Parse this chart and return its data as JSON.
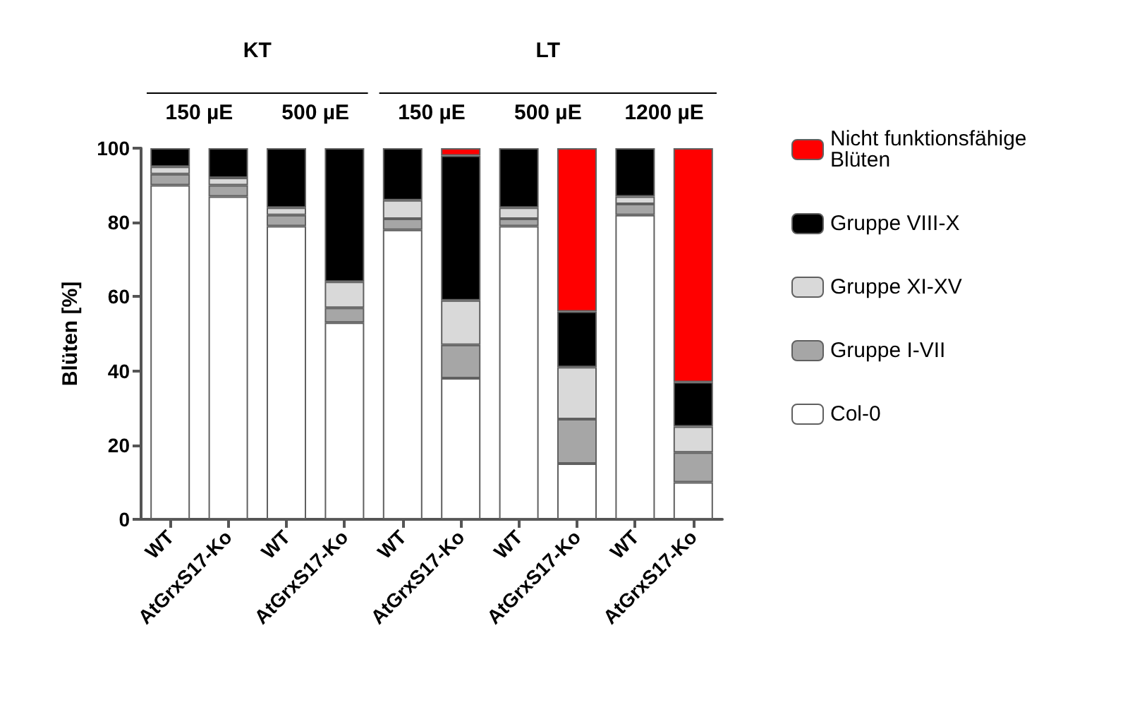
{
  "chart_data": {
    "type": "bar",
    "stacked": true,
    "ylabel": "Blüten [%]",
    "categories": [
      "WT",
      "AtGrxS17-Ko",
      "WT",
      "AtGrxS17-Ko",
      "WT",
      "AtGrxS17-Ko",
      "WT",
      "AtGrxS17-Ko",
      "WT",
      "AtGrxS17-Ko"
    ],
    "series": [
      {
        "name": "Col-0",
        "color": "#ffffff",
        "values": [
          90,
          87,
          79,
          53,
          78,
          38,
          79,
          15,
          82,
          10
        ]
      },
      {
        "name": "Gruppe I-VII",
        "color": "#a6a6a6",
        "values": [
          3,
          3,
          3,
          4,
          3,
          9,
          2,
          12,
          3,
          8
        ]
      },
      {
        "name": "Gruppe XI-XV",
        "color": "#d9d9d9",
        "values": [
          2,
          2,
          2,
          7,
          5,
          12,
          3,
          14,
          2,
          7
        ]
      },
      {
        "name": "Gruppe VIII-X",
        "color": "#000000",
        "values": [
          5,
          8,
          16,
          36,
          14,
          39,
          16,
          15,
          13,
          12
        ]
      },
      {
        "name": "Nicht funktionsfähige Blüten",
        "color": "#ff0000",
        "values": [
          null,
          null,
          null,
          null,
          null,
          2,
          null,
          44,
          null,
          63
        ]
      }
    ],
    "ylim": [
      0,
      100
    ],
    "yticks": [
      0,
      20,
      40,
      60,
      80,
      100
    ],
    "grid": false,
    "legend": "right",
    "annotations": [
      "KT",
      "LT",
      "150 µE",
      "500 µE",
      "150 µE",
      "500 µE",
      "1200 µE"
    ]
  }
}
